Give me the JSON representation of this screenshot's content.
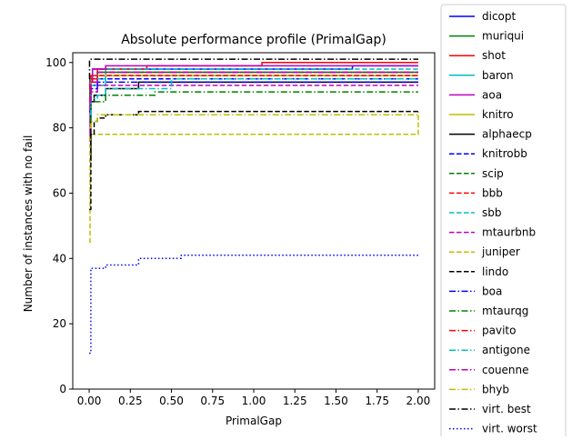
{
  "chart_data": {
    "type": "line",
    "title": "Absolute performance profile (PrimalGap)",
    "xlabel": "PrimalGap",
    "ylabel": "Number of instances with no fail",
    "xlim": [
      -0.1,
      2.1
    ],
    "ylim": [
      0,
      103
    ],
    "xticks": [
      0.0,
      0.25,
      0.5,
      0.75,
      1.0,
      1.25,
      1.5,
      1.75,
      2.0
    ],
    "xtick_labels": [
      "0.00",
      "0.25",
      "0.50",
      "0.75",
      "1.00",
      "1.25",
      "1.50",
      "1.75",
      "2.00"
    ],
    "yticks": [
      0,
      20,
      40,
      60,
      80,
      100
    ],
    "ytick_labels": [
      "0",
      "20",
      "40",
      "60",
      "80",
      "100"
    ],
    "grid": false,
    "legend_placement": "outside-right",
    "series": [
      {
        "name": "dicopt",
        "color": "#0000ff",
        "style": "solid",
        "x": [
          0.0,
          0.005,
          0.02,
          1.6,
          2.0
        ],
        "y": [
          85,
          95,
          98,
          99,
          99
        ]
      },
      {
        "name": "muriqui",
        "color": "#008000",
        "style": "solid",
        "x": [
          0.0,
          0.01,
          0.05,
          2.0
        ],
        "y": [
          88,
          94,
          97,
          97
        ]
      },
      {
        "name": "shot",
        "color": "#ff0000",
        "style": "solid",
        "x": [
          0.0,
          0.01,
          0.05,
          0.35,
          1.05,
          2.0
        ],
        "y": [
          90,
          96,
          98,
          99,
          100,
          100
        ]
      },
      {
        "name": "baron",
        "color": "#00bfbf",
        "style": "solid",
        "x": [
          0.0,
          0.01,
          0.1,
          2.0
        ],
        "y": [
          88,
          93,
          96,
          96
        ]
      },
      {
        "name": "aoa",
        "color": "#bf00bf",
        "style": "solid",
        "x": [
          0.0,
          0.005,
          0.02,
          0.1,
          2.0
        ],
        "y": [
          76,
          94,
          98,
          99,
          99
        ]
      },
      {
        "name": "knitro",
        "color": "#bfbf00",
        "style": "solid",
        "x": [
          0.0,
          0.01,
          0.05,
          2.0
        ],
        "y": [
          90,
          95,
          96,
          96
        ]
      },
      {
        "name": "alphaecp",
        "color": "#000000",
        "style": "solid",
        "x": [
          0.0,
          0.01,
          0.03,
          0.1,
          0.3,
          2.0
        ],
        "y": [
          70,
          88,
          90,
          92,
          94,
          94
        ]
      },
      {
        "name": "knitrobb",
        "color": "#0000ff",
        "style": "dashed",
        "x": [
          0.0,
          0.01,
          0.05,
          2.0
        ],
        "y": [
          85,
          92,
          95,
          95
        ]
      },
      {
        "name": "scip",
        "color": "#008000",
        "style": "dashed",
        "x": [
          0.0,
          0.005,
          0.05,
          2.0
        ],
        "y": [
          90,
          95,
          97,
          97
        ]
      },
      {
        "name": "bbb",
        "color": "#ff0000",
        "style": "dashed",
        "x": [
          0.0,
          0.01,
          0.05,
          2.0
        ],
        "y": [
          88,
          94,
          96,
          96
        ]
      },
      {
        "name": "sbb",
        "color": "#00bfbf",
        "style": "dashed",
        "x": [
          0.0,
          0.01,
          0.1,
          2.0
        ],
        "y": [
          88,
          95,
          98,
          98
        ]
      },
      {
        "name": "mtaurbnb",
        "color": "#bf00bf",
        "style": "dashed",
        "x": [
          0.0,
          0.01,
          0.05,
          2.0
        ],
        "y": [
          84,
          91,
          93,
          93
        ]
      },
      {
        "name": "juniper",
        "color": "#bfbf00",
        "style": "dashed",
        "x": [
          0.0,
          0.005,
          2.0,
          2.0
        ],
        "y": [
          45,
          78,
          78,
          85
        ]
      },
      {
        "name": "lindo",
        "color": "#000000",
        "style": "dashed",
        "x": [
          0.0,
          0.01,
          0.03,
          0.05,
          0.1,
          0.3,
          2.0
        ],
        "y": [
          55,
          78,
          82,
          83,
          84,
          85,
          85
        ]
      },
      {
        "name": "boa",
        "color": "#0000ff",
        "style": "dashdot",
        "x": [
          0.0,
          0.01,
          0.05,
          2.0
        ],
        "y": [
          88,
          93,
          94,
          94
        ]
      },
      {
        "name": "mtaurqg",
        "color": "#008000",
        "style": "dashdot",
        "x": [
          0.0,
          0.01,
          0.1,
          0.4,
          2.0
        ],
        "y": [
          82,
          88,
          90,
          91,
          91
        ]
      },
      {
        "name": "pavito",
        "color": "#ff0000",
        "style": "dashdot",
        "x": [
          0.0,
          0.005,
          0.05,
          2.0
        ],
        "y": [
          88,
          95,
          97,
          97
        ]
      },
      {
        "name": "antigone",
        "color": "#00bfbf",
        "style": "dashdot",
        "x": [
          0.0,
          0.01,
          0.05,
          0.1,
          0.5,
          2.0
        ],
        "y": [
          84,
          89,
          90,
          92,
          95,
          95
        ]
      },
      {
        "name": "couenne",
        "color": "#bf00bf",
        "style": "dashdot",
        "x": [
          0.0,
          0.01,
          0.05,
          2.0
        ],
        "y": [
          88,
          94,
          97,
          97
        ]
      },
      {
        "name": "bhyb",
        "color": "#bfbf00",
        "style": "dashdot",
        "x": [
          0.0,
          0.01,
          0.05,
          0.1,
          0.3,
          2.0
        ],
        "y": [
          80,
          82,
          84,
          84,
          84,
          84
        ]
      },
      {
        "name": "virt. best",
        "color": "#000000",
        "style": "dashdot",
        "x": [
          0.0,
          0.002,
          2.0
        ],
        "y": [
          95,
          101,
          101
        ]
      },
      {
        "name": "virt. worst",
        "color": "#0000ff",
        "style": "dotted",
        "x": [
          0.0,
          0.01,
          0.1,
          0.3,
          0.56,
          2.0
        ],
        "y": [
          11,
          37,
          38,
          40,
          41,
          41
        ]
      }
    ]
  }
}
